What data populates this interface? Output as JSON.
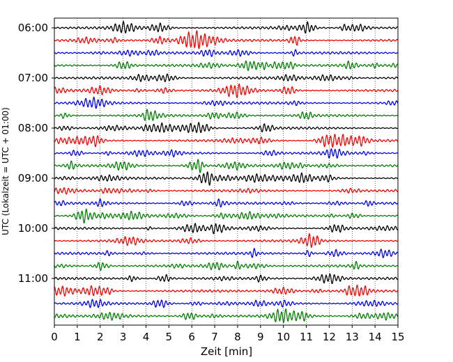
{
  "chart_data": {
    "type": "line",
    "title": "",
    "xlabel": "Zeit  [min]",
    "ylabel": "UTC (Lokalzeit = UTC + 01:00)",
    "xlim": [
      0,
      15
    ],
    "x_ticks": [
      0,
      1,
      2,
      3,
      4,
      5,
      6,
      7,
      8,
      9,
      10,
      11,
      12,
      13,
      14,
      15
    ],
    "y_ticks": [
      "06:00",
      "07:00",
      "08:00",
      "09:00",
      "10:00",
      "11:00"
    ],
    "grid": "vertical dotted",
    "trace_interval_min": 15,
    "trace_colors": [
      "#000000",
      "#ff0000",
      "#0000ff",
      "#008000"
    ],
    "traces": [
      {
        "start": "06:00",
        "color": "#000000"
      },
      {
        "start": "06:15",
        "color": "#ff0000"
      },
      {
        "start": "06:30",
        "color": "#0000ff"
      },
      {
        "start": "06:45",
        "color": "#008000"
      },
      {
        "start": "07:00",
        "color": "#000000"
      },
      {
        "start": "07:15",
        "color": "#ff0000"
      },
      {
        "start": "07:30",
        "color": "#0000ff"
      },
      {
        "start": "07:45",
        "color": "#008000"
      },
      {
        "start": "08:00",
        "color": "#000000"
      },
      {
        "start": "08:15",
        "color": "#ff0000"
      },
      {
        "start": "08:30",
        "color": "#0000ff"
      },
      {
        "start": "08:45",
        "color": "#008000"
      },
      {
        "start": "09:00",
        "color": "#000000"
      },
      {
        "start": "09:15",
        "color": "#ff0000"
      },
      {
        "start": "09:30",
        "color": "#0000ff"
      },
      {
        "start": "09:45",
        "color": "#008000"
      },
      {
        "start": "10:00",
        "color": "#000000"
      },
      {
        "start": "10:15",
        "color": "#ff0000"
      },
      {
        "start": "10:30",
        "color": "#0000ff"
      },
      {
        "start": "10:45",
        "color": "#008000"
      },
      {
        "start": "11:00",
        "color": "#000000"
      },
      {
        "start": "11:15",
        "color": "#ff0000"
      },
      {
        "start": "11:30",
        "color": "#0000ff"
      },
      {
        "start": "11:45",
        "color": "#008000"
      }
    ]
  }
}
